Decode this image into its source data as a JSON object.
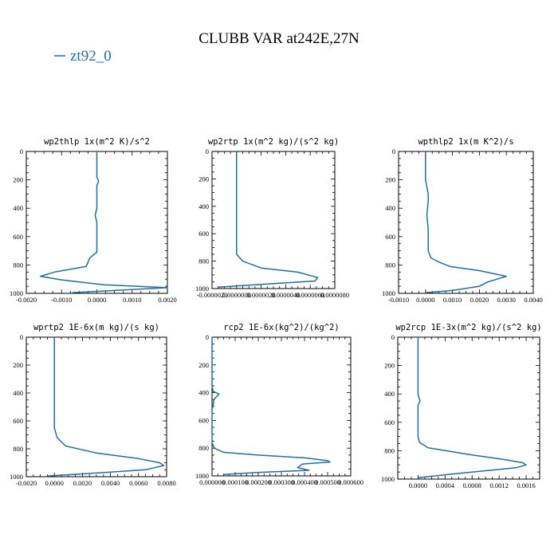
{
  "title": "CLUBB VAR at242E,27N",
  "legend": {
    "label": "zt92_0"
  },
  "colors": {
    "series": "#1f6fa8",
    "axis": "#000000"
  },
  "chart_data": [
    {
      "type": "line",
      "title": "wp2thlp   1x(m^2 K)/s^2",
      "xlim": [
        -0.002,
        0.002
      ],
      "ylim": [
        1000,
        0
      ],
      "xticks": [
        -0.002,
        -0.001,
        0.0,
        0.001,
        0.002
      ],
      "xtick_labels": [
        "-0.0020",
        "-0.0010",
        "0.0000",
        "0.0010",
        "0.0020"
      ],
      "yticks": [
        0,
        200,
        400,
        600,
        800,
        1000
      ],
      "ytick_labels": [
        "0",
        "200",
        "400",
        "600",
        "800",
        "1000"
      ],
      "series": [
        {
          "name": "zt92_0",
          "x": [
            0.0,
            0.0,
            0.0,
            5e-05,
            0.0,
            0.0,
            0.0,
            -5e-05,
            0.0,
            0.0,
            0.0,
            -0.0002,
            -0.0003,
            -0.0012,
            -0.0016,
            -0.001,
            0.0002,
            0.002,
            0.0005,
            -0.0007
          ],
          "y": [
            0,
            100,
            180,
            210,
            240,
            300,
            400,
            450,
            500,
            600,
            710,
            750,
            810,
            850,
            880,
            905,
            940,
            960,
            980,
            995
          ]
        }
      ]
    },
    {
      "type": "line",
      "title": "wp2rtp   1x(m^2 kg)/(s^2 kg)",
      "xlim": [
        -2e-06,
        8e-06
      ],
      "ylim": [
        1000,
        0
      ],
      "xticks": [
        -2e-06,
        0.0,
        2e-06,
        4e-06,
        6e-06,
        8e-06
      ],
      "xtick_labels": [
        "-0.0000020",
        "0.0000000",
        "0.0000020",
        "0.0000040",
        "0.0000060",
        "0.0000080"
      ],
      "yticks": [
        0,
        200,
        400,
        600,
        800,
        1000
      ],
      "ytick_labels": [
        "0",
        "200",
        "400",
        "600",
        "800",
        "1000"
      ],
      "series": [
        {
          "name": "zt92_0",
          "x": [
            0.0,
            0.0,
            0.0,
            0.0,
            0.0,
            0.0,
            0.0,
            5e-07,
            2e-06,
            5e-06,
            6.6e-06,
            6.4e-06,
            2e-06,
            -1.5e-06
          ],
          "y": [
            0,
            200,
            400,
            450,
            600,
            700,
            750,
            800,
            850,
            880,
            920,
            945,
            970,
            990
          ]
        }
      ]
    },
    {
      "type": "line",
      "title": "wpthlp2   1x(m K^2)/s",
      "xlim": [
        -0.001,
        0.004
      ],
      "ylim": [
        1000,
        0
      ],
      "xticks": [
        -0.001,
        0.0,
        0.001,
        0.002,
        0.003,
        0.004
      ],
      "xtick_labels": [
        "-0.0010",
        "0.0000",
        "0.0010",
        "0.0020",
        "0.0030",
        "0.0040"
      ],
      "yticks": [
        0,
        200,
        400,
        600,
        800,
        1000
      ],
      "ytick_labels": [
        "0",
        "200",
        "400",
        "600",
        "800",
        "1000"
      ],
      "series": [
        {
          "name": "zt92_0",
          "x": [
            0.0,
            0.0,
            0.0001,
            0.0001,
            5e-05,
            0.0001,
            0.0001,
            0.0001,
            0.0002,
            0.0005,
            0.0009,
            0.002,
            0.003,
            0.0023,
            0.002,
            0.001,
            0.0
          ],
          "y": [
            0,
            200,
            300,
            350,
            450,
            550,
            650,
            700,
            750,
            780,
            810,
            840,
            880,
            920,
            950,
            980,
            995
          ]
        }
      ]
    },
    {
      "type": "line",
      "title": "wprtp2   1E-6x(m kg)/(s kg)",
      "xlim": [
        -0.002,
        0.008
      ],
      "ylim": [
        1000,
        0
      ],
      "xticks": [
        -0.002,
        0.0,
        0.002,
        0.004,
        0.006,
        0.008
      ],
      "xtick_labels": [
        "-0.0020",
        "0.0000",
        "0.0020",
        "0.0040",
        "0.0060",
        "0.0080"
      ],
      "yticks": [
        0,
        200,
        400,
        600,
        800,
        1000
      ],
      "ytick_labels": [
        "0",
        "200",
        "400",
        "600",
        "800",
        "1000"
      ],
      "series": [
        {
          "name": "zt92_0",
          "x": [
            0.0,
            0.0,
            0.0,
            0.0,
            0.0,
            0.0002,
            0.0008,
            0.003,
            0.006,
            0.0075,
            0.0078,
            0.0065,
            0.002,
            -0.0005
          ],
          "y": [
            0,
            200,
            400,
            500,
            650,
            720,
            780,
            830,
            870,
            900,
            920,
            950,
            980,
            995
          ]
        }
      ]
    },
    {
      "type": "line",
      "title": "rcp2   1E-6x(kg^2)/(kg^2)",
      "xlim": [
        0.0,
        0.0006
      ],
      "ylim": [
        1000,
        0
      ],
      "xticks": [
        0.0,
        0.0001,
        0.0002,
        0.0003,
        0.0004,
        0.0005,
        0.0006
      ],
      "xtick_labels": [
        "0.000000",
        "0.000100",
        "0.000200",
        "0.000300",
        "0.000400",
        "0.000500",
        "0.000600"
      ],
      "yticks": [
        0,
        200,
        400,
        600,
        800,
        1000
      ],
      "ytick_labels": [
        "0",
        "200",
        "400",
        "600",
        "800",
        "1000"
      ],
      "series": [
        {
          "name": "zt92_0",
          "x": [
            0.0,
            0.0,
            0.0,
            0.0,
            0.0,
            5e-06,
            3e-05,
            8e-06,
            5e-06,
            0.0,
            0.0,
            0.0,
            0.0,
            1e-05,
            5e-05,
            0.0002,
            0.0004,
            0.0005,
            0.00051,
            0.00039,
            0.00037,
            0.00042,
            0.0002,
            5e-05
          ],
          "y": [
            0,
            100,
            200,
            300,
            350,
            390,
            410,
            450,
            490,
            520,
            600,
            700,
            760,
            800,
            830,
            850,
            870,
            890,
            900,
            915,
            940,
            960,
            975,
            990
          ]
        }
      ]
    },
    {
      "type": "line",
      "title": "wp2rcp   1E-3x(m^2 kg)/(s^2 kg)",
      "xlim": [
        -0.0003,
        0.0018
      ],
      "ylim": [
        1000,
        0
      ],
      "xticks": [
        0.0,
        0.0004,
        0.0008,
        0.0012,
        0.0016
      ],
      "xtick_labels": [
        "0.0000",
        "0.0004",
        "0.0008",
        "0.0012",
        "0.0016"
      ],
      "yticks": [
        0,
        200,
        400,
        600,
        800,
        1000
      ],
      "ytick_labels": [
        "0",
        "200",
        "400",
        "600",
        "800",
        "1000"
      ],
      "series": [
        {
          "name": "zt92_0",
          "x": [
            0.0,
            0.0,
            0.0,
            1e-05,
            3e-05,
            0.0,
            0.0,
            0.0,
            2e-05,
            0.00015,
            0.0008,
            0.00125,
            0.00155,
            0.0016,
            0.00145,
            0.0006,
            0.0
          ],
          "y": [
            0,
            200,
            400,
            420,
            450,
            480,
            600,
            700,
            740,
            780,
            830,
            860,
            885,
            900,
            920,
            960,
            990
          ]
        }
      ]
    }
  ]
}
